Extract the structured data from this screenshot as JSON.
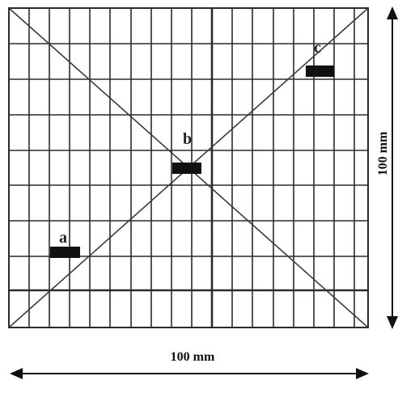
{
  "points": [
    {
      "id": "a",
      "label": "a"
    },
    {
      "id": "b",
      "label": "b"
    },
    {
      "id": "c",
      "label": "c"
    }
  ],
  "dimensions": {
    "width_label": "100 mm",
    "height_label": "100 mm"
  },
  "colors": {
    "lines": "#2b2b2b",
    "markers": "#111111",
    "background": "#ffffff"
  }
}
